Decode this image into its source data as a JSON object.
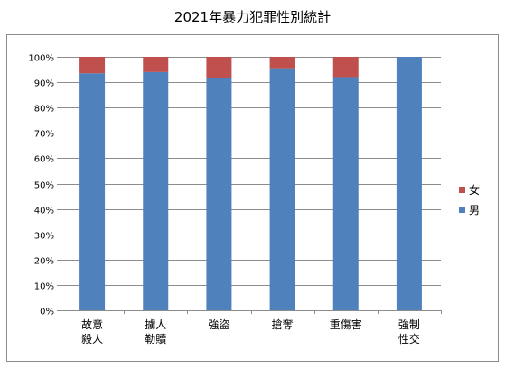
{
  "chart_data": {
    "type": "bar",
    "stacked": true,
    "percent": true,
    "title": "2021年暴力犯罪性別統計",
    "categories": [
      [
        "故意",
        "殺人"
      ],
      [
        "擄人",
        "勒贖"
      ],
      [
        "強盜"
      ],
      [
        "搶奪"
      ],
      [
        "重傷害"
      ],
      [
        "強制",
        "性交"
      ]
    ],
    "series": [
      {
        "name": "男",
        "color": "#4f81bd",
        "values": [
          93.5,
          94,
          91.5,
          95.5,
          92,
          100
        ]
      },
      {
        "name": "女",
        "color": "#c0504d",
        "values": [
          6.5,
          6,
          8.5,
          4.5,
          8,
          0
        ]
      }
    ],
    "ylim": [
      0,
      100
    ],
    "yticks": [
      "0%",
      "10%",
      "20%",
      "30%",
      "40%",
      "50%",
      "60%",
      "70%",
      "80%",
      "90%",
      "100%"
    ],
    "grid": true,
    "legend": {
      "position": "right",
      "order": [
        "女",
        "男"
      ]
    }
  }
}
